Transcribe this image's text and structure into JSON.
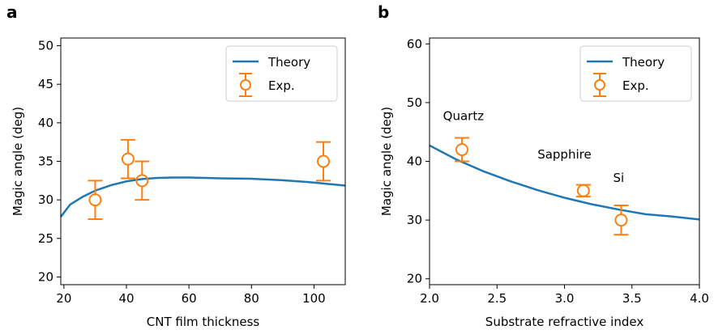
{
  "panels": [
    "a",
    "b"
  ],
  "chart_data": [
    {
      "type": "line",
      "panel": "a",
      "xlabel": "CNT film thickness",
      "ylabel": "Magic angle (deg)",
      "xlim": [
        19,
        110
      ],
      "ylim": [
        19,
        51
      ],
      "xticks": [
        20,
        40,
        60,
        80,
        100
      ],
      "yticks": [
        20,
        25,
        30,
        35,
        40,
        45,
        50
      ],
      "grid": false,
      "legend_position": "top-right",
      "series": [
        {
          "name": "Theory",
          "kind": "line",
          "color": "#1f77b4",
          "x": [
            19,
            22,
            26,
            30,
            35,
            40,
            45,
            50,
            55,
            60,
            65,
            70,
            80,
            90,
            100,
            110
          ],
          "y": [
            27.8,
            29.4,
            30.4,
            31.2,
            31.9,
            32.4,
            32.7,
            32.85,
            32.9,
            32.9,
            32.85,
            32.8,
            32.75,
            32.55,
            32.25,
            31.85
          ]
        },
        {
          "name": "Exp.",
          "kind": "errorbar",
          "color": "#ff7f0e",
          "x": [
            30,
            40.5,
            45,
            103
          ],
          "y": [
            30,
            35.3,
            32.5,
            35
          ],
          "yerr": [
            2.5,
            2.5,
            2.5,
            2.5
          ]
        }
      ]
    },
    {
      "type": "line",
      "panel": "b",
      "xlabel": "Substrate refractive index",
      "ylabel": "Magic angle (deg)",
      "xlim": [
        2.0,
        4.0
      ],
      "ylim": [
        19,
        61
      ],
      "xticks": [
        2.0,
        2.5,
        3.0,
        3.5,
        4.0
      ],
      "xtick_labels": [
        "2.0",
        "2.5",
        "3.0",
        "3.5",
        "4.0"
      ],
      "yticks": [
        20,
        30,
        40,
        50,
        60
      ],
      "grid": false,
      "legend_position": "top-right",
      "series": [
        {
          "name": "Theory",
          "kind": "line",
          "color": "#1f77b4",
          "x": [
            2.0,
            2.2,
            2.4,
            2.6,
            2.8,
            3.0,
            3.2,
            3.4,
            3.6,
            3.8,
            4.0
          ],
          "y": [
            42.7,
            40.3,
            38.3,
            36.6,
            35.1,
            33.8,
            32.7,
            31.8,
            31.0,
            30.6,
            30.1
          ]
        },
        {
          "name": "Exp.",
          "kind": "errorbar",
          "color": "#ff7f0e",
          "x": [
            2.24,
            3.14,
            3.42
          ],
          "y": [
            42,
            35,
            30
          ],
          "yerr": [
            2,
            1,
            2.5
          ]
        }
      ],
      "annotations": [
        {
          "text": "Quartz",
          "x": 2.1,
          "y": 47
        },
        {
          "text": "Sapphire",
          "x": 2.8,
          "y": 40.5
        },
        {
          "text": "Si",
          "x": 3.36,
          "y": 36.5
        }
      ]
    }
  ]
}
